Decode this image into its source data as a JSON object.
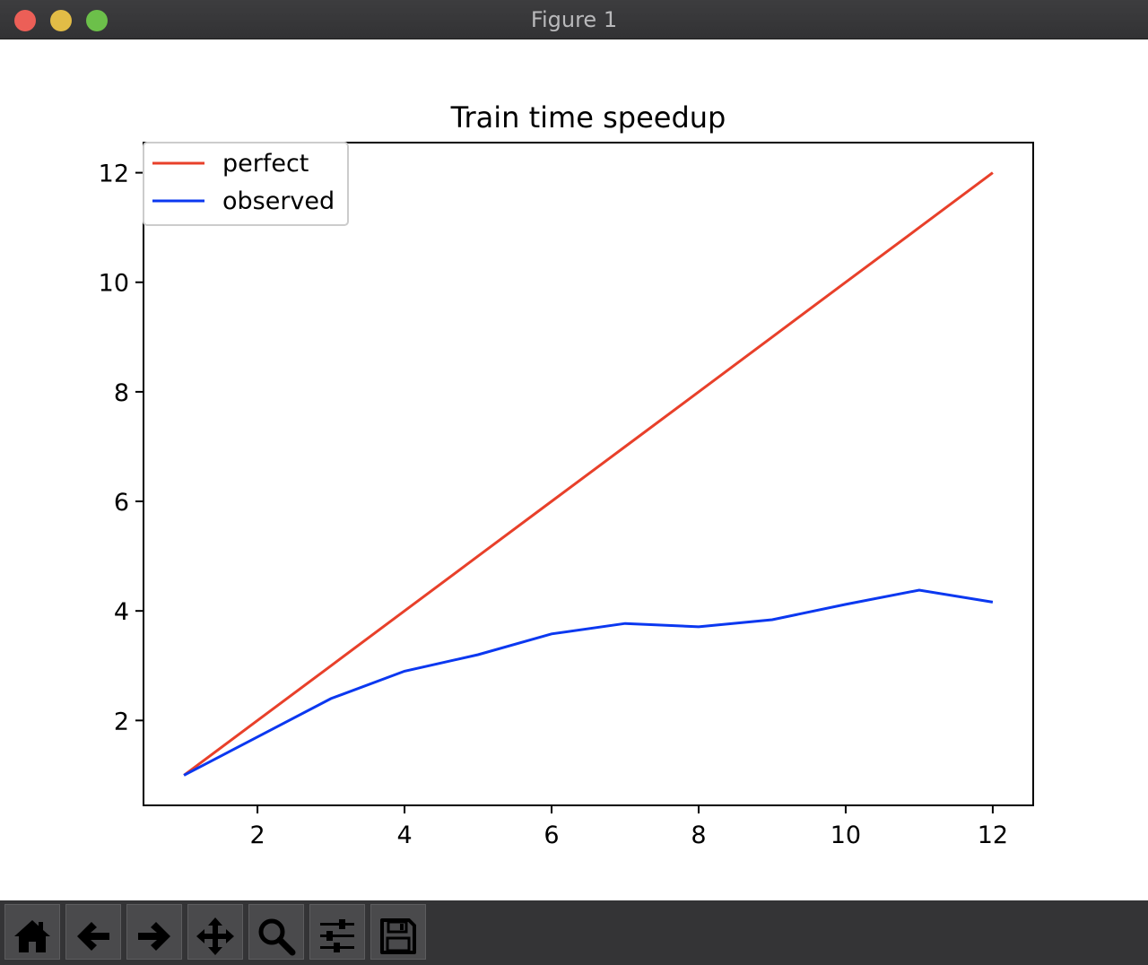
{
  "window": {
    "title": "Figure 1"
  },
  "toolbar": {
    "buttons": [
      {
        "icon": "home-icon"
      },
      {
        "icon": "back-arrow-icon"
      },
      {
        "icon": "forward-arrow-icon"
      },
      {
        "icon": "pan-icon"
      },
      {
        "icon": "zoom-icon"
      },
      {
        "icon": "subplots-config-icon"
      },
      {
        "icon": "save-icon"
      }
    ]
  },
  "chart_data": {
    "type": "line",
    "title": "Train time speedup",
    "xlabel": "",
    "ylabel": "",
    "x": [
      1,
      2,
      3,
      4,
      5,
      6,
      7,
      8,
      9,
      10,
      11,
      12
    ],
    "series": [
      {
        "name": "perfect",
        "color": "#e8402a",
        "values": [
          1,
          2,
          3,
          4,
          5,
          6,
          7,
          8,
          9,
          10,
          11,
          12
        ]
      },
      {
        "name": "observed",
        "color": "#0b38f0",
        "values": [
          1,
          1.7,
          2.4,
          2.9,
          3.2,
          3.58,
          3.77,
          3.71,
          3.84,
          4.12,
          4.38,
          4.16
        ]
      }
    ],
    "xlim": [
      0.45,
      12.55
    ],
    "ylim": [
      0.45,
      12.55
    ],
    "xticks": [
      2,
      4,
      6,
      8,
      10,
      12
    ],
    "yticks": [
      2,
      4,
      6,
      8,
      10,
      12
    ],
    "grid": false,
    "legend": "top-left"
  }
}
